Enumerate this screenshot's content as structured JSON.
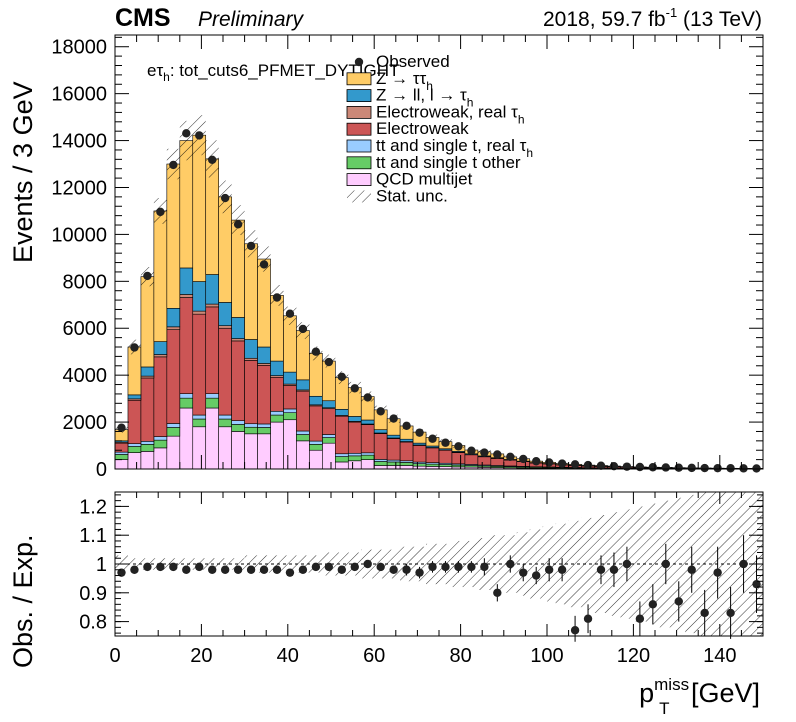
{
  "header": {
    "cms": "CMS",
    "preliminary": "Preliminary",
    "lumi": "2018, 59.7 fb",
    "lumi_sup": "-1",
    "energy": " (13 TeV)"
  },
  "channel_label": {
    "prefix": "eτ",
    "sub": "h",
    "rest": ": tot_cuts6_PFMET_DYTIGHT"
  },
  "legend": [
    {
      "label": "Observed",
      "color": "#000000",
      "kind": "marker"
    },
    {
      "label": "Z → ττ",
      "sub": "h",
      "color": "#ffcc66",
      "kind": "box"
    },
    {
      "label": "Z → ll, l → τ",
      "sub": "h",
      "color": "#3399cc",
      "kind": "box"
    },
    {
      "label": "Electroweak, real  τ",
      "sub": "h",
      "color": "#cc8877",
      "kind": "box"
    },
    {
      "label": "Electroweak",
      "color": "#cc5555",
      "kind": "box"
    },
    {
      "label": "tt and single t, real  τ",
      "sub": "h",
      "color": "#99ccff",
      "kind": "box"
    },
    {
      "label": "tt and single t other",
      "color": "#66cc66",
      "kind": "box"
    },
    {
      "label": "QCD multijet",
      "color": "#ffccff",
      "kind": "box"
    },
    {
      "label": "Stat. unc.",
      "color": "#000000",
      "kind": "hatch"
    }
  ],
  "chart_data": [
    {
      "type": "bar",
      "stacked": true,
      "xlabel": "p",
      "xlabel_sup": "miss",
      "xlabel_sub": "T",
      "xlabel_unit": " [GeV]",
      "ylabel": "Events / 3 GeV",
      "xlim": [
        0,
        150
      ],
      "ylim": [
        0,
        18500
      ],
      "bin_width": 3,
      "x_ticks": [
        0,
        20,
        40,
        60,
        80,
        100,
        120,
        140
      ],
      "y_ticks": [
        0,
        2000,
        4000,
        6000,
        8000,
        10000,
        12000,
        14000,
        16000,
        18000
      ],
      "bin_low_edges": [
        0,
        3,
        6,
        9,
        12,
        15,
        18,
        21,
        24,
        27,
        30,
        33,
        36,
        39,
        42,
        45,
        48,
        51,
        54,
        57,
        60,
        63,
        66,
        69,
        72,
        75,
        78,
        81,
        84,
        87,
        90,
        93,
        96,
        99,
        102,
        105,
        108,
        111,
        114,
        117,
        120,
        123,
        126,
        129,
        132,
        135,
        138,
        141,
        144,
        147
      ],
      "series": [
        {
          "name": "QCD multijet",
          "color": "#ffccff",
          "values": [
            400,
            700,
            750,
            900,
            1400,
            2600,
            1800,
            2600,
            1800,
            1600,
            1500,
            1500,
            2000,
            2100,
            1200,
            800,
            1100,
            300,
            350,
            400,
            150,
            150,
            150,
            120,
            110,
            100,
            90,
            80,
            70,
            60,
            50,
            40,
            30,
            30,
            25,
            20,
            15,
            15,
            12,
            10,
            8,
            7,
            6,
            5,
            4,
            3,
            3,
            2,
            2,
            2
          ]
        },
        {
          "name": "tt and single t other",
          "color": "#66cc66",
          "values": [
            220,
            260,
            300,
            330,
            370,
            420,
            330,
            420,
            330,
            300,
            280,
            270,
            300,
            300,
            270,
            250,
            240,
            230,
            210,
            190,
            170,
            150,
            130,
            110,
            100,
            90,
            80,
            70,
            60,
            55,
            50,
            45,
            40,
            35,
            30,
            28,
            25,
            22,
            20,
            18,
            15,
            13,
            12,
            10,
            9,
            8,
            7,
            6,
            5,
            5
          ]
        },
        {
          "name": "tt and single t, real  τh",
          "color": "#99ccff",
          "values": [
            100,
            120,
            130,
            150,
            170,
            190,
            170,
            190,
            170,
            160,
            150,
            150,
            160,
            160,
            150,
            140,
            130,
            120,
            110,
            100,
            90,
            80,
            70,
            65,
            60,
            55,
            50,
            45,
            40,
            35,
            30,
            28,
            25,
            22,
            20,
            18,
            16,
            14,
            12,
            10,
            9,
            8,
            7,
            6,
            5,
            5,
            4,
            4,
            3,
            3
          ]
        },
        {
          "name": "Electroweak",
          "color": "#cc5555",
          "values": [
            380,
            1850,
            2700,
            3400,
            4000,
            4100,
            4300,
            3700,
            3700,
            3400,
            2700,
            2500,
            1450,
            1000,
            1700,
            1500,
            1100,
            1600,
            1330,
            1200,
            1100,
            920,
            800,
            710,
            630,
            555,
            480,
            410,
            350,
            300,
            250,
            200,
            160,
            130,
            100,
            85,
            70,
            60,
            50,
            40,
            35,
            30,
            26,
            22,
            18,
            15,
            13,
            11,
            10,
            8
          ]
        },
        {
          "name": "Electroweak, real  τh",
          "color": "#cc8877",
          "values": [
            40,
            60,
            80,
            100,
            120,
            130,
            130,
            120,
            110,
            100,
            90,
            80,
            70,
            60,
            50,
            45,
            40,
            35,
            30,
            28,
            25,
            22,
            20,
            18,
            15,
            13,
            12,
            10,
            9,
            8,
            7,
            6,
            5,
            5,
            4,
            4,
            3,
            3,
            3,
            2,
            2,
            2,
            2,
            1,
            1,
            1,
            1,
            1,
            1,
            1
          ]
        },
        {
          "name": "Z → ll, l → τh",
          "color": "#3399cc",
          "values": [
            60,
            170,
            390,
            550,
            790,
            1130,
            1260,
            1260,
            990,
            900,
            800,
            700,
            620,
            510,
            430,
            365,
            300,
            260,
            210,
            170,
            140,
            120,
            100,
            80,
            65,
            50,
            40,
            35,
            30,
            25,
            20,
            18,
            15,
            12,
            10,
            8,
            7,
            6,
            5,
            4,
            3,
            3,
            2,
            2,
            2,
            2,
            1,
            1,
            1,
            1
          ]
        },
        {
          "name": "Z → ττ",
          "color": "#ffcc66",
          "values": [
            480,
            2040,
            3850,
            5570,
            6150,
            5430,
            6240,
            4930,
            4500,
            4150,
            4080,
            3750,
            2800,
            2400,
            2100,
            1830,
            1690,
            1350,
            1230,
            1000,
            845,
            700,
            565,
            470,
            365,
            300,
            250,
            160,
            175,
            160,
            110,
            100,
            60,
            50,
            40,
            38,
            30,
            30,
            25,
            20,
            18,
            15,
            12,
            12,
            10,
            8,
            8,
            7,
            6,
            5
          ]
        }
      ],
      "observed": [
        1760,
        5180,
        8230,
        10960,
        12960,
        14310,
        14220,
        13180,
        11550,
        10430,
        9510,
        8720,
        7310,
        6620,
        5970,
        5000,
        4560,
        3930,
        3440,
        3050,
        2460,
        2150,
        1840,
        1550,
        1290,
        1120,
        965,
        780,
        700,
        620,
        520,
        430,
        330,
        280,
        230,
        200,
        165,
        140,
        120,
        100,
        85,
        75,
        65,
        55,
        48,
        40,
        35,
        32,
        28,
        25
      ],
      "stat_unc_rel": [
        0.08,
        0.06,
        0.05,
        0.05,
        0.05,
        0.06,
        0.06,
        0.06,
        0.06,
        0.06,
        0.06,
        0.06,
        0.06,
        0.06,
        0.06,
        0.06,
        0.06,
        0.07,
        0.07,
        0.07,
        0.07,
        0.08,
        0.08,
        0.08,
        0.09,
        0.09,
        0.1,
        0.1,
        0.11,
        0.11,
        0.12,
        0.12,
        0.13,
        0.14,
        0.15,
        0.16,
        0.17,
        0.18,
        0.19,
        0.2,
        0.21,
        0.22,
        0.23,
        0.24,
        0.25,
        0.26,
        0.27,
        0.28,
        0.29,
        0.3
      ]
    },
    {
      "type": "scatter",
      "xlabel": "p",
      "xlabel_sup": "miss",
      "xlabel_sub": "T",
      "xlabel_unit": " [GeV]",
      "ylabel": "Obs. / Exp.",
      "xlim": [
        0,
        150
      ],
      "ylim": [
        0.75,
        1.25
      ],
      "x_ticks": [
        0,
        20,
        40,
        60,
        80,
        100,
        120,
        140
      ],
      "y_ticks": [
        0.8,
        0.9,
        1,
        1.1,
        1.2
      ],
      "reference_line": 1,
      "ratio": [
        0.97,
        0.98,
        0.99,
        0.99,
        0.99,
        0.98,
        0.99,
        0.98,
        0.98,
        0.98,
        0.98,
        0.98,
        0.98,
        0.97,
        0.98,
        0.99,
        0.99,
        0.98,
        0.99,
        1.0,
        0.99,
        0.98,
        0.98,
        0.97,
        0.99,
        0.99,
        0.99,
        0.99,
        0.99,
        0.9,
        1.0,
        0.97,
        0.96,
        0.98,
        0.98,
        0.77,
        0.81,
        0.98,
        0.98,
        1.0,
        0.81,
        0.86,
        1.0,
        0.87,
        0.98,
        0.83,
        0.97,
        0.83,
        1.0,
        0.93
      ],
      "ratio_err": [
        0.01,
        0.01,
        0.01,
        0.01,
        0.01,
        0.01,
        0.01,
        0.01,
        0.01,
        0.01,
        0.01,
        0.01,
        0.01,
        0.01,
        0.01,
        0.01,
        0.01,
        0.01,
        0.01,
        0.01,
        0.01,
        0.01,
        0.02,
        0.02,
        0.02,
        0.02,
        0.02,
        0.02,
        0.03,
        0.03,
        0.03,
        0.03,
        0.03,
        0.04,
        0.04,
        0.05,
        0.05,
        0.05,
        0.06,
        0.06,
        0.06,
        0.07,
        0.07,
        0.07,
        0.08,
        0.08,
        0.09,
        0.09,
        0.1,
        0.1
      ],
      "band_rel": [
        0.03,
        0.02,
        0.02,
        0.02,
        0.02,
        0.02,
        0.02,
        0.02,
        0.02,
        0.02,
        0.03,
        0.03,
        0.03,
        0.03,
        0.03,
        0.03,
        0.04,
        0.04,
        0.04,
        0.05,
        0.05,
        0.05,
        0.06,
        0.06,
        0.07,
        0.07,
        0.08,
        0.08,
        0.09,
        0.1,
        0.1,
        0.11,
        0.12,
        0.13,
        0.14,
        0.15,
        0.16,
        0.17,
        0.18,
        0.19,
        0.2,
        0.21,
        0.22,
        0.23,
        0.24,
        0.25,
        0.26,
        0.27,
        0.28,
        0.3
      ]
    }
  ]
}
